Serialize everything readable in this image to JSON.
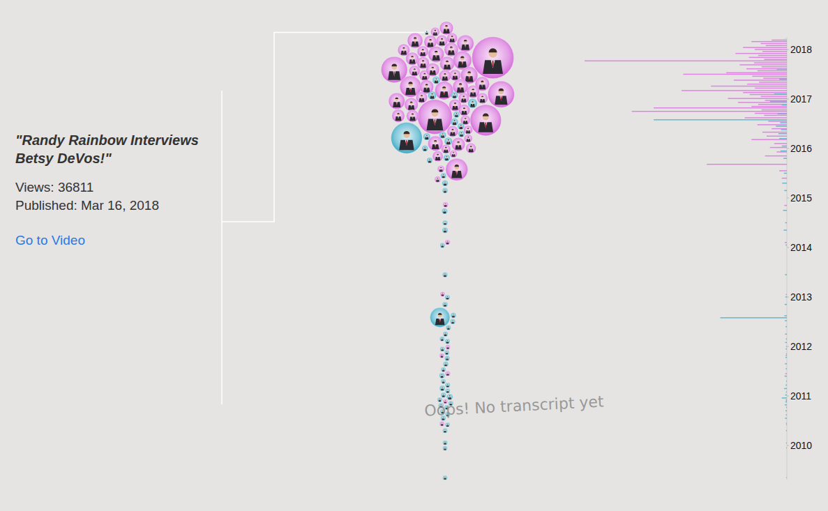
{
  "chart_data": {
    "type": "bubble",
    "ylim": [
      2009.3,
      2018.25
    ],
    "yticks": [
      2010,
      2011,
      2012,
      2013,
      2014,
      2015,
      2016,
      2017,
      2018
    ],
    "annotations": [
      "Oops! No transcript yet"
    ],
    "selected": {
      "title": "\"Randy Rainbow Interviews Betsy DeVos!\"",
      "views_label": "Views:",
      "views": 36811,
      "published_label": "Published:",
      "published": "Mar 16, 2018",
      "link": "Go to Video",
      "date": 2018.21,
      "color": "#c3d6dc"
    },
    "series": [
      {
        "color": "#d466d8",
        "values": [
          2018.19,
          2018.16,
          2018.12,
          2018.08,
          2018.04,
          2018.0,
          2017.96,
          2017.92,
          2017.88,
          2017.84,
          2017.8,
          2017.77,
          2017.73,
          2017.69,
          2017.65,
          2017.61,
          2017.57,
          2017.53,
          2017.5,
          2017.46,
          2017.42,
          2017.38,
          2017.34,
          2017.3,
          2017.26,
          2017.22,
          2017.17,
          2017.13,
          2017.09,
          2017.05,
          2017.01,
          2016.97,
          2016.93,
          2016.89,
          2016.85,
          2016.82,
          2016.78,
          2016.75,
          2016.71,
          2016.67,
          2016.62,
          2016.55,
          2016.48,
          2016.4,
          2016.33,
          2016.25,
          2016.18,
          2016.1,
          2016.02,
          2015.93,
          2015.85,
          2015.68,
          2015.55,
          2015.4,
          2014.85,
          2014.1,
          2013.05,
          2012.0,
          2011.82,
          2011.45,
          2010.9,
          2010.45
        ],
        "size": [
          180000,
          420000,
          310000,
          250000,
          520000,
          380000,
          290000,
          610000,
          340000,
          450000,
          270000,
          2400000,
          390000,
          560000,
          300000,
          480000,
          350000,
          720000,
          1230000,
          410000,
          280000,
          630000,
          330000,
          470000,
          900000,
          380000,
          1250000,
          520000,
          440000,
          310000,
          700000,
          260000,
          580000,
          340000,
          420000,
          1580000,
          300000,
          1840000,
          380000,
          270000,
          500000,
          220000,
          350000,
          180000,
          290000,
          240000,
          420000,
          150000,
          200000,
          120000,
          260000,
          950000,
          90000,
          60000,
          30000,
          25000,
          12000,
          9000,
          14000,
          20000,
          8000,
          11000
        ]
      },
      {
        "color": "#3aa9c4",
        "values": [
          2017.6,
          2017.4,
          2017.1,
          2016.95,
          2016.88,
          2016.7,
          2016.58,
          2016.52,
          2016.45,
          2016.38,
          2016.3,
          2016.2,
          2016.05,
          2015.95,
          2015.8,
          2015.5,
          2015.3,
          2015.15,
          2014.75,
          2014.5,
          2014.35,
          2014.05,
          2013.45,
          2013.0,
          2012.85,
          2012.62,
          2012.58,
          2012.52,
          2012.4,
          2012.25,
          2012.15,
          2012.08,
          2011.95,
          2011.85,
          2011.78,
          2011.65,
          2011.55,
          2011.4,
          2011.3,
          2011.22,
          2011.15,
          2011.08,
          2011.02,
          2010.96,
          2010.92,
          2010.88,
          2010.82,
          2010.77,
          2010.7,
          2010.62,
          2010.55,
          2010.42,
          2010.3,
          2010.05,
          2009.95,
          2009.35
        ],
        "size": [
          120000,
          90000,
          150000,
          200000,
          60000,
          110000,
          1580000,
          80000,
          130000,
          70000,
          100000,
          90000,
          60000,
          75000,
          40000,
          35000,
          55000,
          30000,
          45000,
          20000,
          38000,
          15000,
          22000,
          18000,
          26000,
          30000,
          790000,
          24000,
          16000,
          21000,
          12000,
          19000,
          14000,
          10000,
          17000,
          23000,
          13000,
          28000,
          9000,
          15000,
          32000,
          11000,
          20000,
          60000,
          14000,
          18000,
          25000,
          9000,
          16000,
          12000,
          22000,
          8000,
          10000,
          9000,
          7000,
          6000
        ]
      }
    ]
  }
}
